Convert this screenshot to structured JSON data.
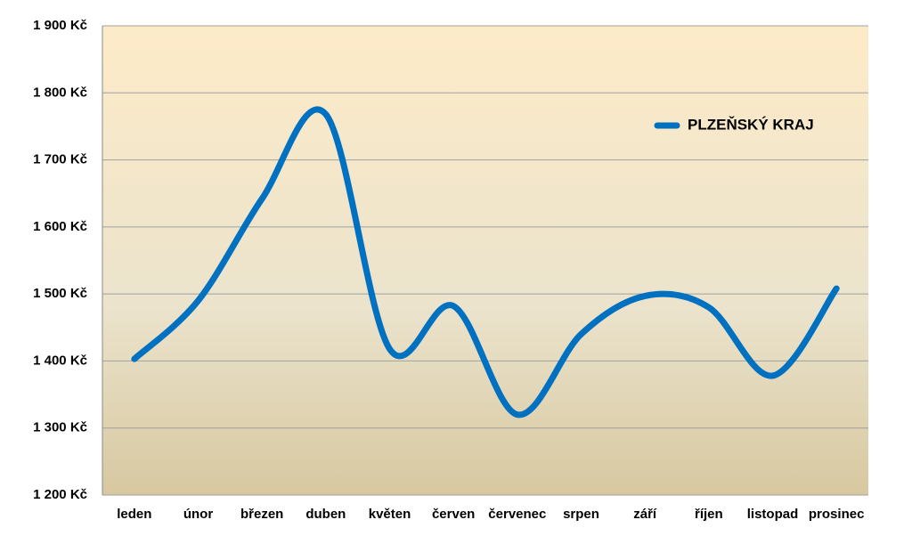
{
  "chart_data": {
    "type": "line",
    "categories": [
      "leden",
      "únor",
      "březen",
      "duben",
      "květen",
      "červen",
      "červenec",
      "srpen",
      "září",
      "říjen",
      "listopad",
      "prosinec"
    ],
    "series": [
      {
        "name": "PLZEŇSKÝ KRAJ",
        "color": "#0070c0",
        "values": [
          1403,
          1490,
          1642,
          1768,
          1418,
          1482,
          1320,
          1440,
          1497,
          1480,
          1378,
          1508
        ]
      }
    ],
    "ylim": [
      1200,
      1900
    ],
    "yticks": [
      {
        "value": 1200,
        "label": "1 200 Kč"
      },
      {
        "value": 1300,
        "label": "1 300 Kč"
      },
      {
        "value": 1400,
        "label": "1 400 Kč"
      },
      {
        "value": 1500,
        "label": "1 500 Kč"
      },
      {
        "value": 1600,
        "label": "1 600 Kč"
      },
      {
        "value": 1700,
        "label": "1 700 Kč"
      },
      {
        "value": 1800,
        "label": "1 800 Kč"
      },
      {
        "value": 1900,
        "label": "1 900 Kč"
      }
    ],
    "grid": true,
    "legend": "top-right"
  }
}
